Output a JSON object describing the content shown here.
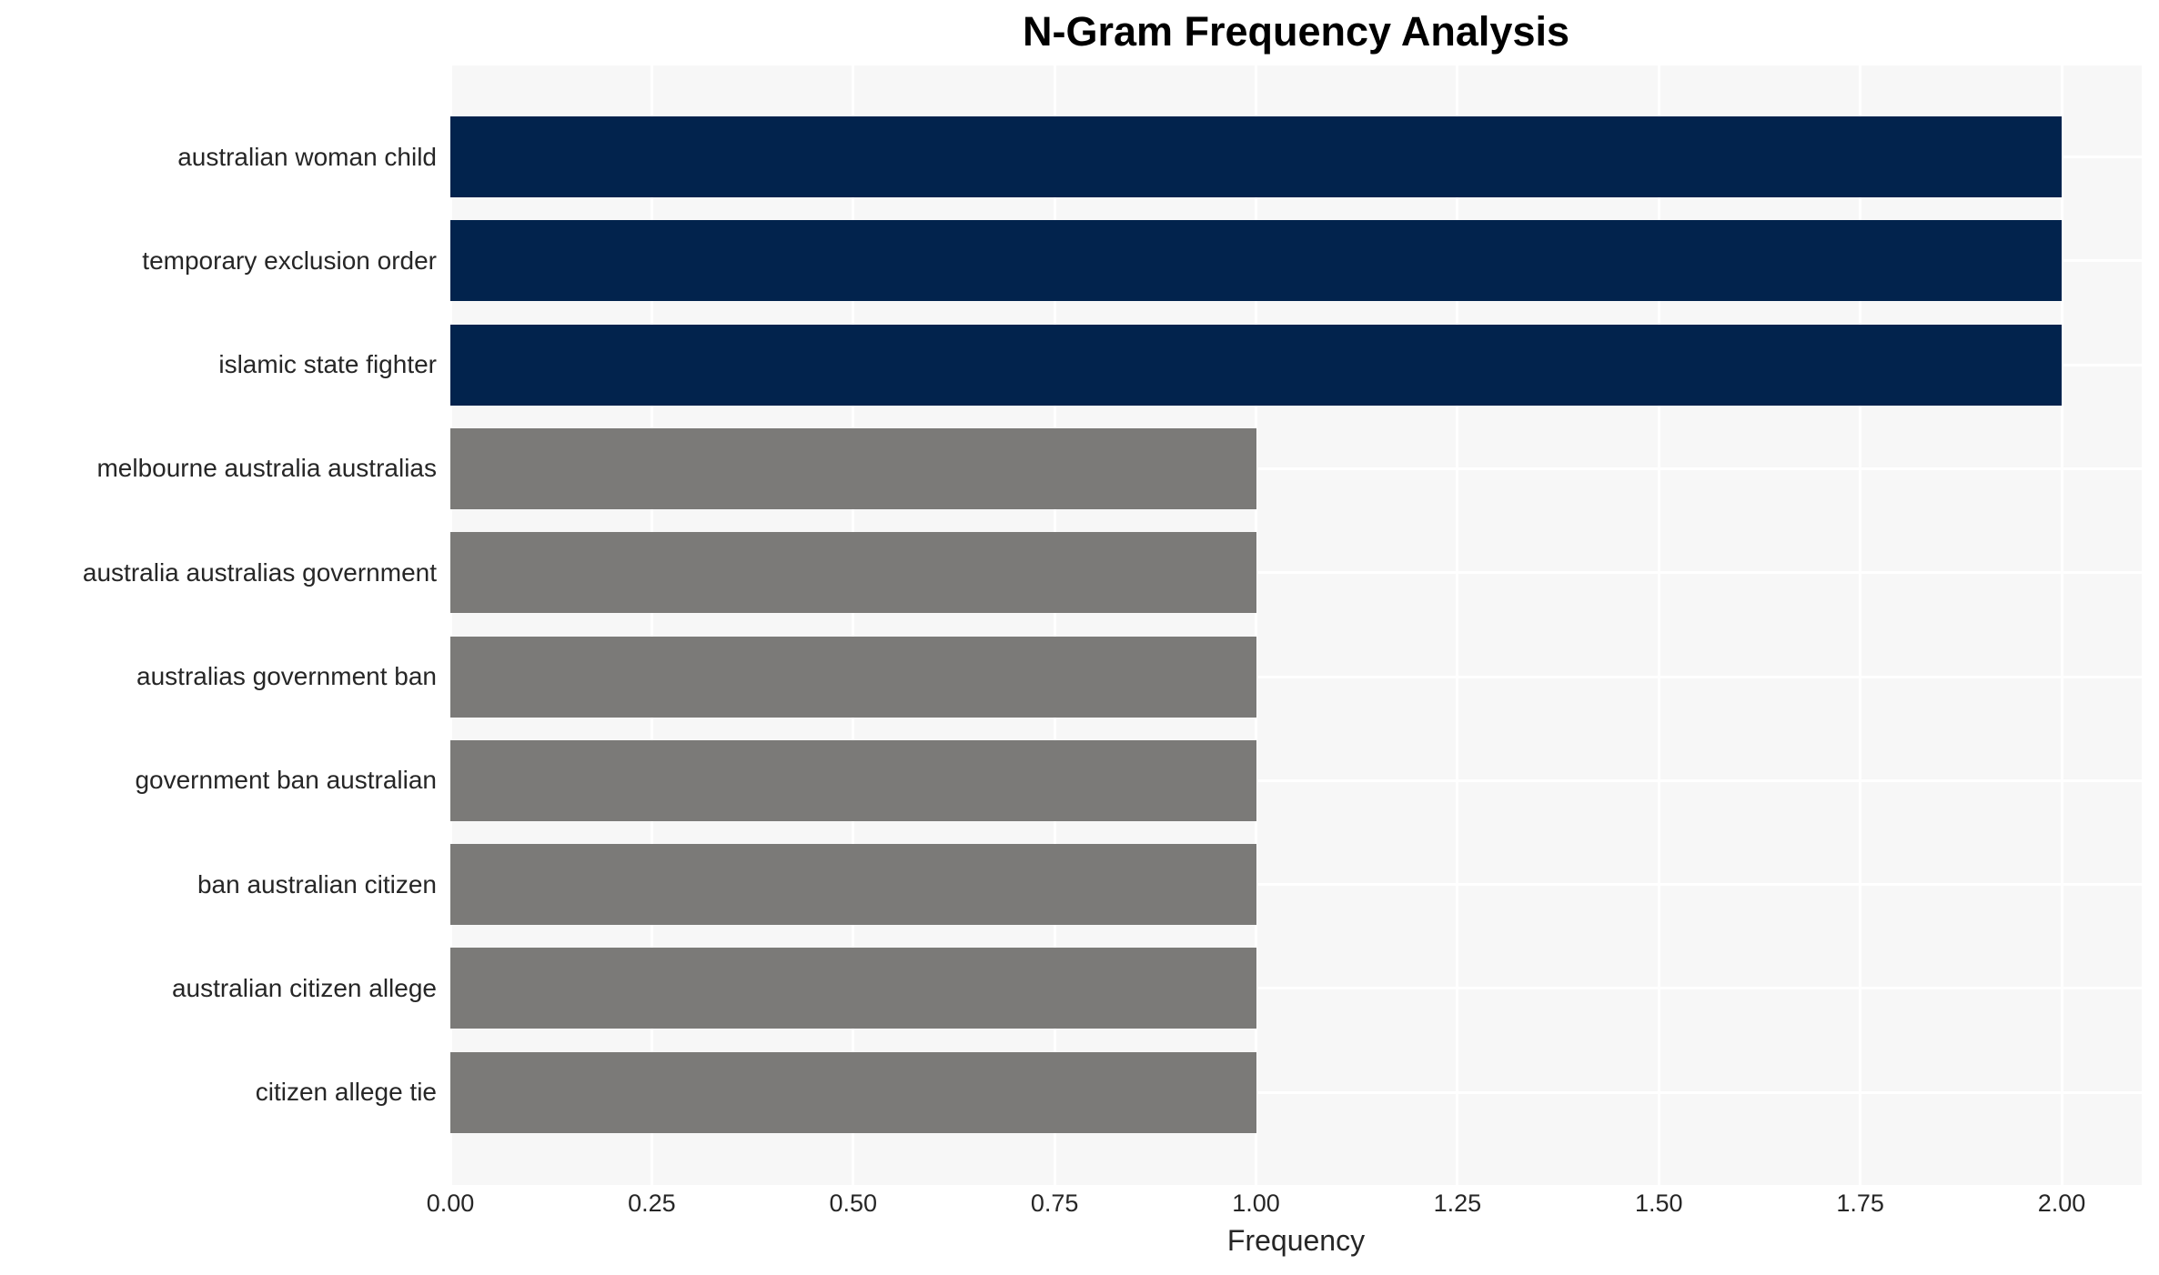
{
  "chart_data": {
    "type": "bar",
    "orientation": "horizontal",
    "title": "N-Gram Frequency Analysis",
    "xlabel": "Frequency",
    "ylabel": "",
    "categories": [
      "australian woman child",
      "temporary exclusion order",
      "islamic state fighter",
      "melbourne australia australias",
      "australia australias government",
      "australias government ban",
      "government ban australian",
      "ban australian citizen",
      "australian citizen allege",
      "citizen allege tie"
    ],
    "values": [
      2,
      2,
      2,
      1,
      1,
      1,
      1,
      1,
      1,
      1
    ],
    "bar_colors": [
      "#02234d",
      "#02234d",
      "#02234d",
      "#7b7a78",
      "#7b7a78",
      "#7b7a78",
      "#7b7a78",
      "#7b7a78",
      "#7b7a78",
      "#7b7a78"
    ],
    "xlim": [
      0,
      2.1
    ],
    "xticks": [
      0,
      0.25,
      0.5,
      0.75,
      1,
      1.25,
      1.5,
      1.75,
      2
    ],
    "xtick_labels": [
      "0.00",
      "0.25",
      "0.50",
      "0.75",
      "1.00",
      "1.25",
      "1.50",
      "1.75",
      "2.00"
    ],
    "grid": true,
    "legend": false,
    "colors": {
      "high_value_bar": "#02234d",
      "low_value_bar": "#7b7a78",
      "plot_background": "#f7f7f7",
      "gridline": "#ffffff",
      "tick_text": "#262626",
      "title_text": "#000000"
    }
  }
}
